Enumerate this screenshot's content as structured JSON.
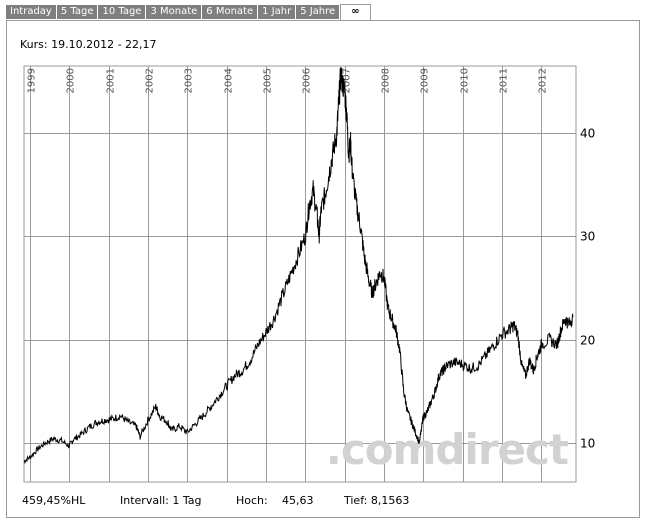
{
  "tabs": [
    {
      "label": "Intraday",
      "active": false
    },
    {
      "label": "5 Tage",
      "active": false
    },
    {
      "label": "10 Tage",
      "active": false
    },
    {
      "label": "3 Monate",
      "active": false
    },
    {
      "label": "6 Monate",
      "active": false
    },
    {
      "label": "1 Jahr",
      "active": false
    },
    {
      "label": "5 Jahre",
      "active": false
    },
    {
      "label": "∞",
      "active": true
    }
  ],
  "kurs": "Kurs: 19.10.2012 - 22,17",
  "watermark": ".comdirect",
  "stats": {
    "performance": "459,45%HL",
    "intervall": "Intervall: 1 Tag",
    "hoch_label": "Hoch:",
    "hoch_value": "45,63",
    "tief": "Tief: 8,1563"
  },
  "colors": {
    "line": "#000000",
    "grid": "#9a9a9a",
    "tab_bg": "#7f7f7f",
    "watermark": "#d2d2d2"
  },
  "chart_data": {
    "type": "line",
    "title": "",
    "xlabel": "",
    "ylabel": "",
    "x_tick_labels": [
      "1999",
      "2000",
      "2001",
      "2002",
      "2003",
      "2004",
      "2005",
      "2006",
      "2007",
      "2008",
      "2009",
      "2010",
      "2011",
      "2012"
    ],
    "y_tick_labels": [
      "10",
      "20",
      "30",
      "40"
    ],
    "xlim": [
      1998.85,
      2012.88
    ],
    "ylim": [
      6.2,
      46.5
    ],
    "grid": true,
    "series": [
      {
        "x": [
          1998.85,
          1999.0,
          1999.2,
          1999.4,
          1999.6,
          1999.8,
          2000.0,
          2000.1,
          2000.3,
          2000.5,
          2000.7,
          2000.9,
          2001.1,
          2001.3,
          2001.5,
          2001.7,
          2001.8,
          2002.0,
          2002.2,
          2002.3,
          2002.5,
          2002.6,
          2002.8,
          2003.0,
          2003.2,
          2003.4,
          2003.6,
          2003.8,
          2004.0,
          2004.2,
          2004.4,
          2004.6,
          2004.8,
          2005.0,
          2005.2,
          2005.4,
          2005.6,
          2005.8,
          2006.0,
          2006.1,
          2006.2,
          2006.3,
          2006.35,
          2006.4,
          2006.5,
          2006.6,
          2006.7,
          2006.8,
          2006.85,
          2006.9,
          2007.0,
          2007.05,
          2007.1,
          2007.15,
          2007.2,
          2007.3,
          2007.4,
          2007.5,
          2007.6,
          2007.7,
          2007.8,
          2007.9,
          2008.0,
          2008.1,
          2008.2,
          2008.3,
          2008.4,
          2008.5,
          2008.6,
          2008.7,
          2008.8,
          2008.9,
          2009.0,
          2009.1,
          2009.2,
          2009.3,
          2009.4,
          2009.5,
          2009.6,
          2009.8,
          2010.0,
          2010.2,
          2010.4,
          2010.6,
          2010.8,
          2011.0,
          2011.2,
          2011.3,
          2011.4,
          2011.5,
          2011.6,
          2011.7,
          2011.8,
          2011.9,
          2012.0,
          2012.2,
          2012.4,
          2012.5,
          2012.6,
          2012.7,
          2012.8
        ],
        "y": [
          8.2,
          8.6,
          9.4,
          10.0,
          10.4,
          10.2,
          9.7,
          10.3,
          10.8,
          11.5,
          12.0,
          12.2,
          12.3,
          12.6,
          12.0,
          11.6,
          10.6,
          12.2,
          13.5,
          12.6,
          12.0,
          11.2,
          11.6,
          11.0,
          11.8,
          12.6,
          13.5,
          14.5,
          15.5,
          16.5,
          17.0,
          18.0,
          19.5,
          20.7,
          22.0,
          24.0,
          26.0,
          28.0,
          30.0,
          33.0,
          34.5,
          32.0,
          30.0,
          32.5,
          34.0,
          36.0,
          38.0,
          40.0,
          43.0,
          45.6,
          44.0,
          42.0,
          38.0,
          39.0,
          36.0,
          33.0,
          31.0,
          28.0,
          26.0,
          24.5,
          25.5,
          26.5,
          26.0,
          23.0,
          22.0,
          21.0,
          19.0,
          15.0,
          13.0,
          12.0,
          11.0,
          10.0,
          12.5,
          13.0,
          14.0,
          15.0,
          16.5,
          17.0,
          17.5,
          17.8,
          17.6,
          17.2,
          17.5,
          18.5,
          19.5,
          20.5,
          21.0,
          21.4,
          20.5,
          17.5,
          16.5,
          18.0,
          17.0,
          18.5,
          19.5,
          20.0,
          19.5,
          21.0,
          22.0,
          21.5,
          22.17
        ]
      }
    ]
  }
}
